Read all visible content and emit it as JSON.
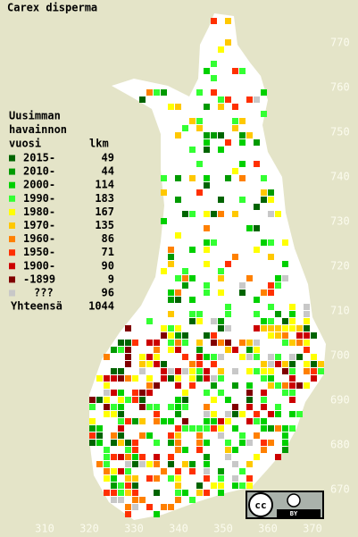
{
  "title": "Carex disperma",
  "legend": {
    "header": [
      "Uusimman",
      "havainnon",
      "vuosi"
    ],
    "count_header": "lkm",
    "items": [
      {
        "label": "2015-",
        "count": 49,
        "color": "#006400"
      },
      {
        "label": "2010-",
        "count": 44,
        "color": "#009a00"
      },
      {
        "label": "2000-",
        "count": 114,
        "color": "#00d000"
      },
      {
        "label": "1990-",
        "count": 183,
        "color": "#33ff33"
      },
      {
        "label": "1980-",
        "count": 167,
        "color": "#ffff00"
      },
      {
        "label": "1970-",
        "count": 135,
        "color": "#ffc800"
      },
      {
        "label": "1960-",
        "count": 86,
        "color": "#ff8000"
      },
      {
        "label": "1950-",
        "count": 71,
        "color": "#ff3000"
      },
      {
        "label": "1900-",
        "count": 90,
        "color": "#cc0000"
      },
      {
        "label": "-1899",
        "count": 9,
        "color": "#800000"
      },
      {
        "label": "???",
        "count": 96,
        "color": "#c8c8c8"
      }
    ],
    "total_label": "Yhteensä",
    "total": 1044
  },
  "north_axis": [
    770,
    760,
    750,
    740,
    730,
    720,
    710,
    700,
    690,
    680,
    670
  ],
  "east_axis": [
    310,
    320,
    330,
    340,
    350,
    360,
    370
  ],
  "license": {
    "cc": "cc",
    "by": "BY"
  }
}
